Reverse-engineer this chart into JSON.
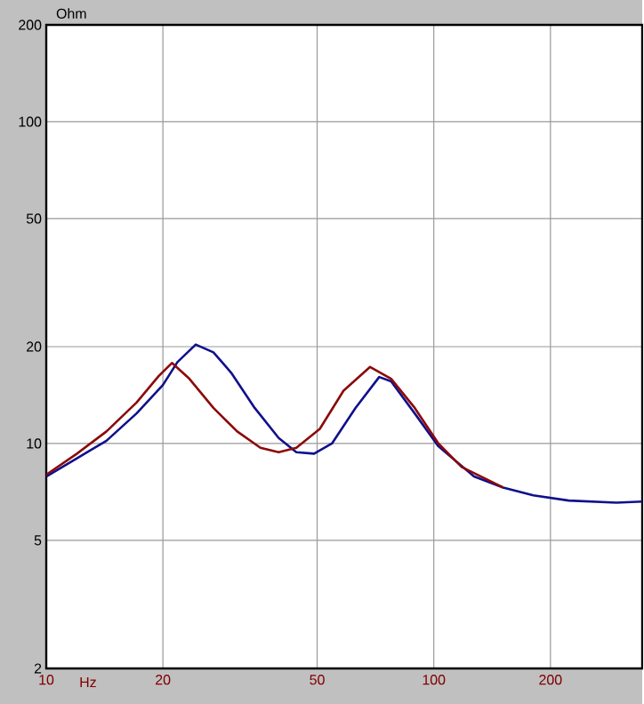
{
  "chart_data": {
    "type": "line",
    "xlabel": "Hz",
    "ylabel": "Ohm",
    "log": "xy",
    "grid": true,
    "xlim": [
      10,
      345
    ],
    "ylim": [
      2,
      200
    ],
    "xticks": [
      10,
      20,
      50,
      100,
      200
    ],
    "yticks": [
      2,
      5,
      10,
      20,
      50,
      100,
      200
    ],
    "series": [
      {
        "color": "#10108c",
        "x": [
          10,
          12,
          14.3,
          17.1,
          20,
          21.8,
          24.3,
          27,
          30,
          34.5,
          39.8,
          44.2,
          49.1,
          54.6,
          62.8,
          72.3,
          77.6,
          89.3,
          102.8,
          127,
          151,
          180.6,
          223,
          296,
          345
        ],
        "values": [
          7.9,
          9.0,
          10.2,
          12.4,
          15.2,
          17.9,
          20.3,
          19.2,
          16.6,
          12.9,
          10.4,
          9.4,
          9.3,
          10.0,
          12.9,
          16.1,
          15.6,
          12.4,
          9.8,
          7.9,
          7.3,
          6.9,
          6.65,
          6.55,
          6.6
        ]
      },
      {
        "color": "#8b0a0a",
        "x": [
          10,
          12,
          14.3,
          17.1,
          19.5,
          21.1,
          23.4,
          27,
          31.1,
          35.7,
          39.8,
          44.2,
          50.8,
          58.5,
          68.5,
          77.6,
          89.3,
          102.8,
          118,
          151
        ],
        "values": [
          8.0,
          9.3,
          10.9,
          13.4,
          16.2,
          17.8,
          15.9,
          12.9,
          10.9,
          9.7,
          9.4,
          9.7,
          11.1,
          14.6,
          17.3,
          15.9,
          12.9,
          10.0,
          8.45,
          7.3
        ]
      }
    ]
  }
}
